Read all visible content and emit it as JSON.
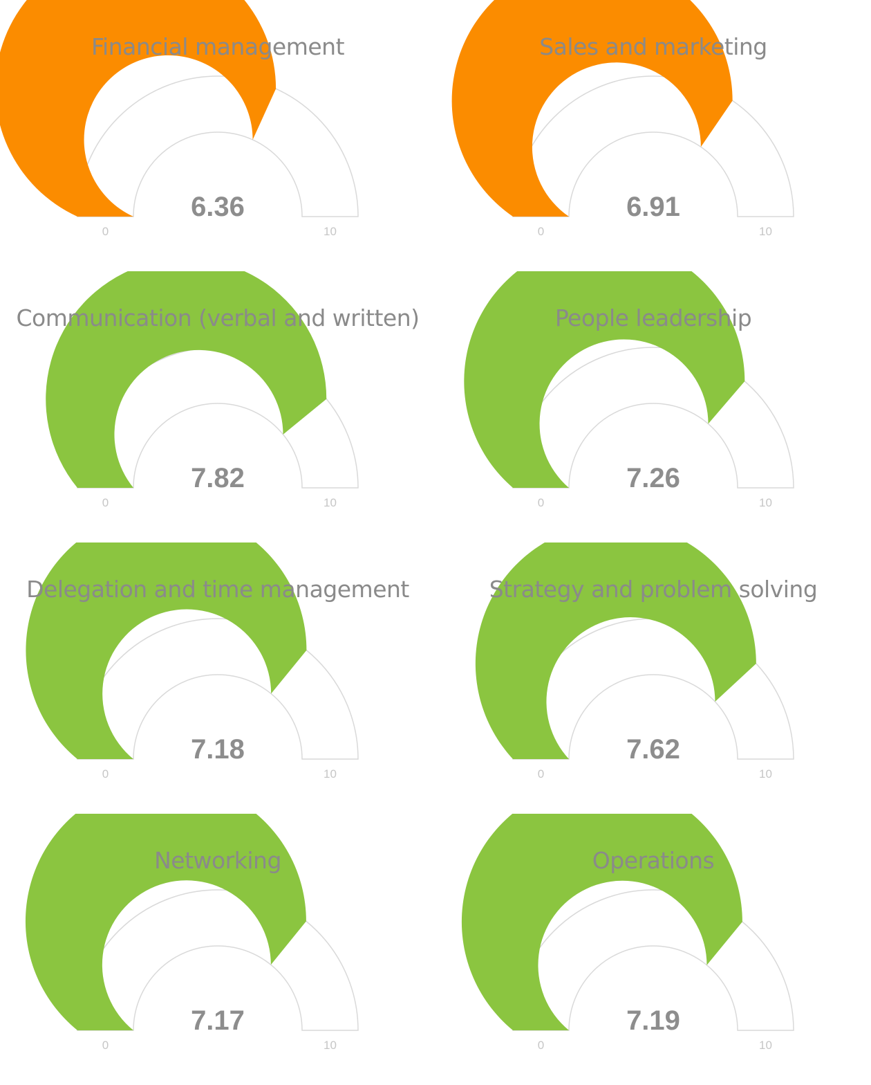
{
  "chart_data": [
    {
      "type": "gauge",
      "title": "Financial management",
      "value": 6.36,
      "value_label": "6.36",
      "min": 0,
      "max": 10,
      "min_label": "0",
      "max_label": "10",
      "color": "#fb8c00"
    },
    {
      "type": "gauge",
      "title": "Sales and marketing",
      "value": 6.91,
      "value_label": "6.91",
      "min": 0,
      "max": 10,
      "min_label": "0",
      "max_label": "10",
      "color": "#fb8c00"
    },
    {
      "type": "gauge",
      "title": "Communication (verbal and written)",
      "value": 7.82,
      "value_label": "7.82",
      "min": 0,
      "max": 10,
      "min_label": "0",
      "max_label": "10",
      "color": "#8bc540"
    },
    {
      "type": "gauge",
      "title": "People leadership",
      "value": 7.26,
      "value_label": "7.26",
      "min": 0,
      "max": 10,
      "min_label": "0",
      "max_label": "10",
      "color": "#8bc540"
    },
    {
      "type": "gauge",
      "title": "Delegation and time management",
      "value": 7.18,
      "value_label": "7.18",
      "min": 0,
      "max": 10,
      "min_label": "0",
      "max_label": "10",
      "color": "#8bc540"
    },
    {
      "type": "gauge",
      "title": "Strategy and problem solving",
      "value": 7.62,
      "value_label": "7.62",
      "min": 0,
      "max": 10,
      "min_label": "0",
      "max_label": "10",
      "color": "#8bc540"
    },
    {
      "type": "gauge",
      "title": "Networking",
      "value": 7.17,
      "value_label": "7.17",
      "min": 0,
      "max": 10,
      "min_label": "0",
      "max_label": "10",
      "color": "#8bc540"
    },
    {
      "type": "gauge",
      "title": "Operations",
      "value": 7.19,
      "value_label": "7.19",
      "min": 0,
      "max": 10,
      "min_label": "0",
      "max_label": "10",
      "color": "#8bc540"
    }
  ],
  "colors": {
    "track_fill": "#ffffff",
    "track_stroke": "#d9d9d9"
  }
}
